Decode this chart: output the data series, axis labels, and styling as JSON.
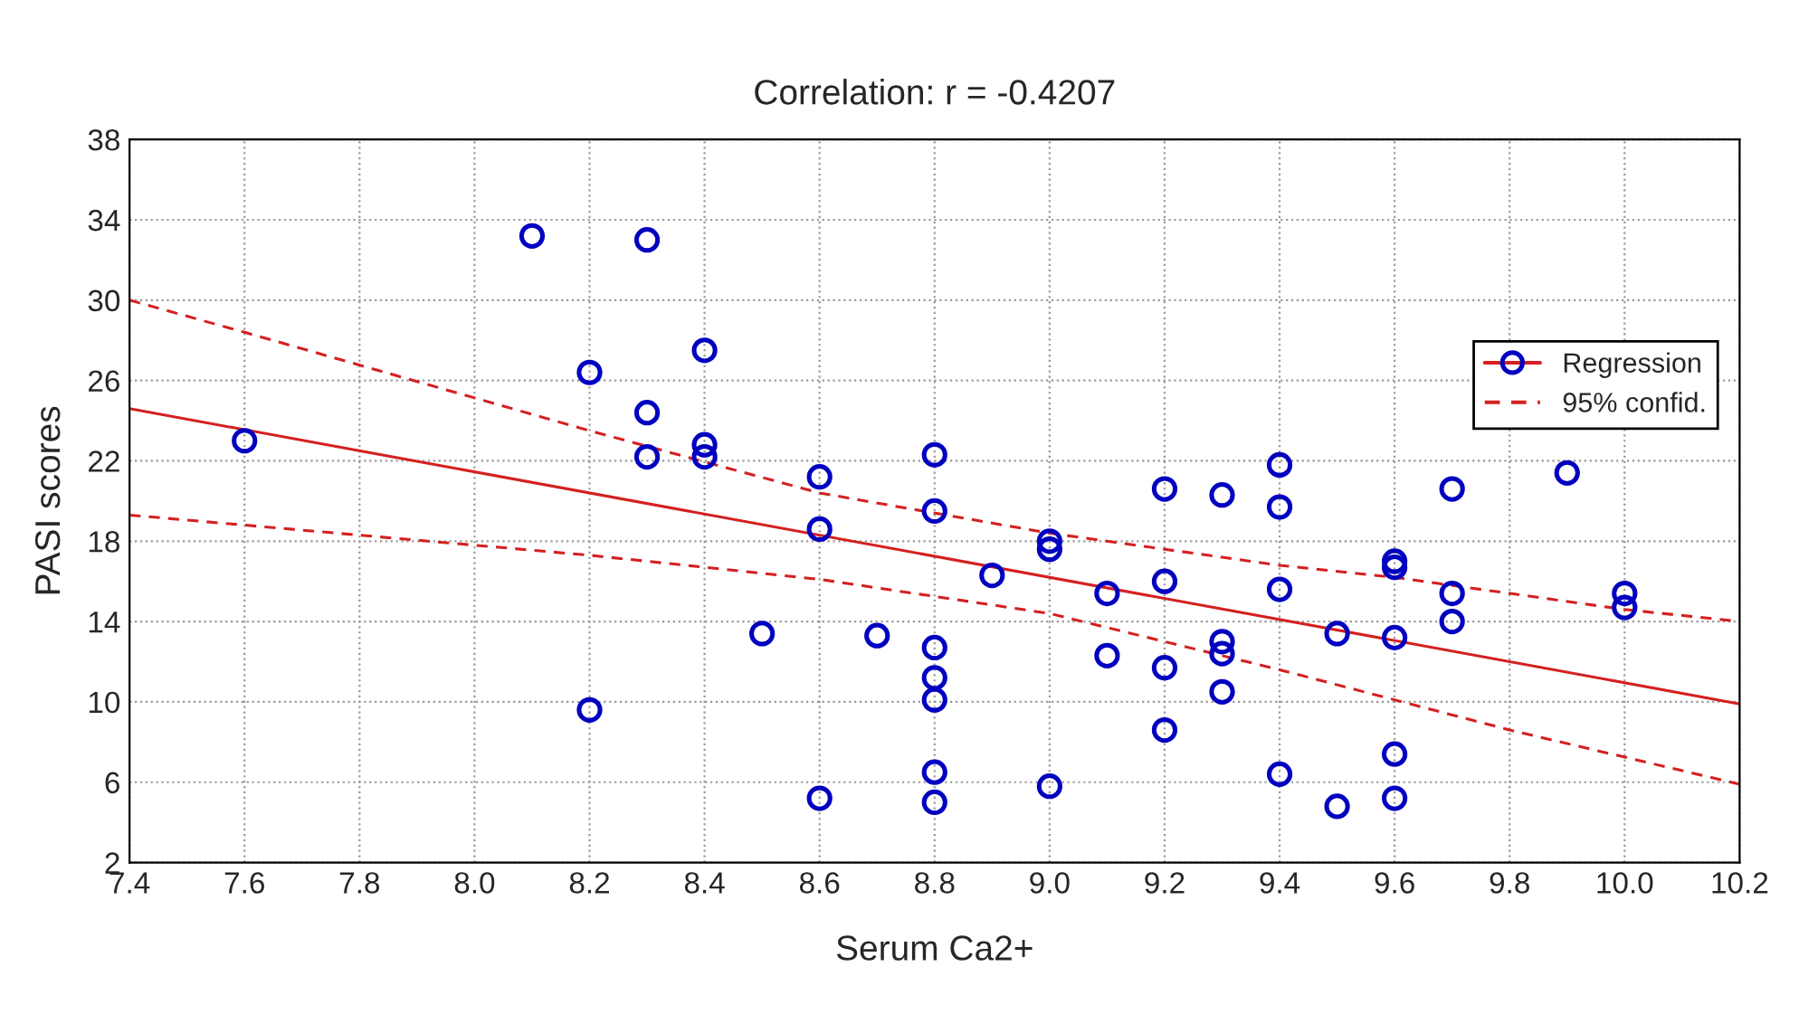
{
  "chart_data": {
    "type": "scatter",
    "title": "Correlation: r = -0.4207",
    "xlabel": "Serum Ca2+",
    "ylabel": "PASI scores",
    "xlim": [
      7.4,
      10.2
    ],
    "xticks": [
      {
        "value": 7.4,
        "label": "7.4"
      },
      {
        "value": 7.6,
        "label": "7.6"
      },
      {
        "value": 7.8,
        "label": "7.8"
      },
      {
        "value": 8.0,
        "label": "8.0"
      },
      {
        "value": 8.2,
        "label": "8.2"
      },
      {
        "value": 8.4,
        "label": "8.4"
      },
      {
        "value": 8.6,
        "label": "8.6"
      },
      {
        "value": 8.8,
        "label": "8.8"
      },
      {
        "value": 9.0,
        "label": "9.0"
      },
      {
        "value": 9.2,
        "label": "9.2"
      },
      {
        "value": 9.4,
        "label": "9.4"
      },
      {
        "value": 9.6,
        "label": "9.6"
      },
      {
        "value": 9.8,
        "label": "9.8"
      },
      {
        "value": 10.0,
        "label": "10.0"
      },
      {
        "value": 10.2,
        "label": "10.2"
      }
    ],
    "ylim": [
      2,
      38
    ],
    "yticks": [
      2,
      6,
      10,
      14,
      18,
      22,
      26,
      30,
      34,
      38
    ],
    "grid": true,
    "legend": "top right",
    "series": [
      {
        "color": "#0000c0",
        "marker": "circle",
        "x": [
          7.6,
          8.1,
          8.2,
          8.2,
          8.3,
          8.3,
          8.3,
          8.4,
          8.4,
          8.4,
          8.5,
          8.6,
          8.6,
          8.6,
          8.7,
          8.8,
          8.8,
          8.8,
          8.8,
          8.8,
          8.8,
          8.8,
          8.9,
          9.0,
          9.0,
          9.0,
          9.1,
          9.1,
          9.2,
          9.2,
          9.2,
          9.2,
          9.3,
          9.3,
          9.3,
          9.3,
          9.4,
          9.4,
          9.4,
          9.4,
          9.5,
          9.5,
          9.6,
          9.6,
          9.6,
          9.6,
          9.6,
          9.7,
          9.7,
          9.7,
          9.9,
          10.0,
          10.0
        ],
        "values": [
          23.0,
          33.2,
          26.4,
          9.6,
          33.0,
          24.4,
          22.2,
          27.5,
          22.8,
          22.2,
          13.4,
          21.2,
          18.6,
          5.2,
          13.3,
          22.3,
          19.5,
          12.7,
          11.2,
          10.1,
          6.5,
          5.0,
          16.3,
          18.0,
          17.6,
          5.8,
          15.4,
          12.3,
          20.6,
          16.0,
          11.7,
          8.6,
          20.3,
          13.0,
          12.4,
          10.5,
          21.8,
          19.7,
          15.6,
          6.4,
          13.4,
          4.8,
          17.0,
          16.7,
          13.2,
          7.4,
          5.2,
          20.6,
          15.4,
          14.0,
          21.4,
          15.4,
          14.7
        ]
      },
      {
        "type": "line",
        "name": "Regression",
        "color": "#d42020",
        "marker": "none",
        "line_style": "solid",
        "x": [
          7.4,
          10.2
        ],
        "values": [
          24.6,
          9.9
        ]
      },
      {
        "type": "line",
        "name": "95% confid.",
        "color": "#d42020",
        "marker": "none",
        "line_style": "dashed",
        "x": [
          7.4,
          7.6,
          8.2,
          8.6,
          9.0,
          9.4,
          9.6,
          10.0,
          10.2
        ],
        "values": [
          30.0,
          28.4,
          23.5,
          20.4,
          18.4,
          16.8,
          16.2,
          14.6,
          14.0
        ]
      },
      {
        "type": "line",
        "color": "#d42020",
        "marker": "none",
        "line_style": "dashed",
        "x": [
          7.4,
          7.6,
          8.2,
          8.6,
          9.0,
          9.4,
          9.8,
          10.2
        ],
        "values": [
          19.3,
          18.8,
          17.3,
          16.1,
          14.4,
          11.6,
          8.6,
          5.9
        ]
      }
    ]
  }
}
